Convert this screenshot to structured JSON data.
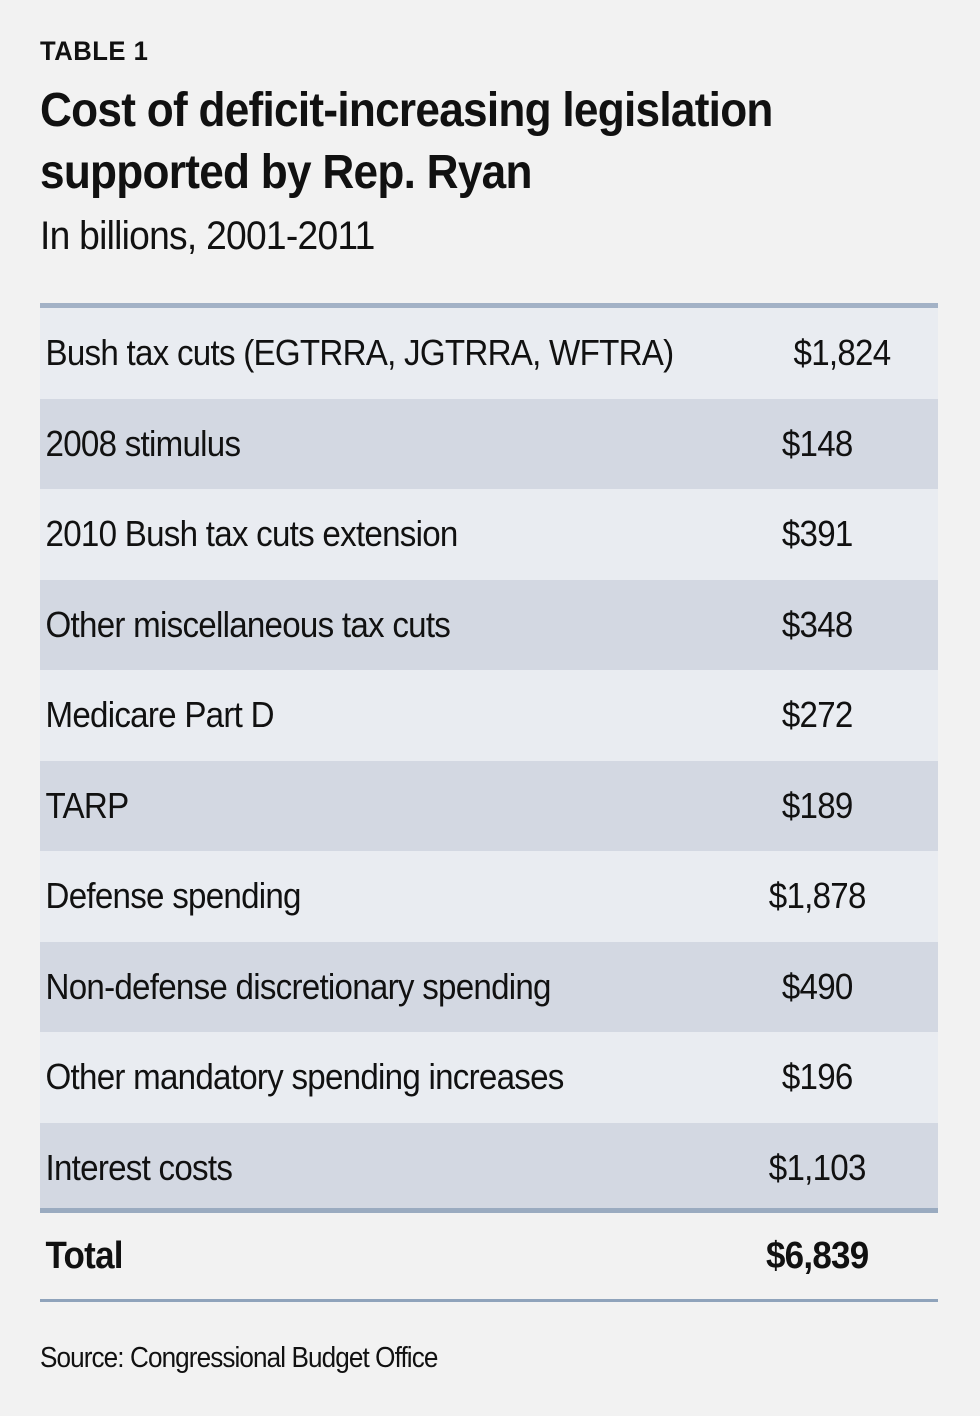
{
  "table_label": "TABLE 1",
  "title": "Cost of deficit-increasing legislation supported by Rep. Ryan",
  "subtitle": "In billions, 2001-2011",
  "rows": [
    {
      "name": "Bush tax cuts (EGTRRA, JGTRRA, WFTRA)",
      "value": "$1,824"
    },
    {
      "name": "2008 stimulus",
      "value": "$148"
    },
    {
      "name": "2010 Bush tax cuts extension",
      "value": "$391"
    },
    {
      "name": "Other miscellaneous tax cuts",
      "value": "$348"
    },
    {
      "name": "Medicare Part D",
      "value": "$272"
    },
    {
      "name": "TARP",
      "value": "$189"
    },
    {
      "name": "Defense spending",
      "value": "$1,878"
    },
    {
      "name": "Non-defense discretionary spending",
      "value": "$490"
    },
    {
      "name": "Other mandatory spending increases",
      "value": "$196"
    },
    {
      "name": "Interest costs",
      "value": "$1,103"
    }
  ],
  "total": {
    "name": "Total",
    "value": "$6,839"
  },
  "source": "Source: Congressional Budget Office",
  "colors": {
    "background": "#f2f2f2",
    "row_light": "#e9ecf1",
    "row_dark": "#d3d8e2",
    "rule": "#9aabc0"
  }
}
